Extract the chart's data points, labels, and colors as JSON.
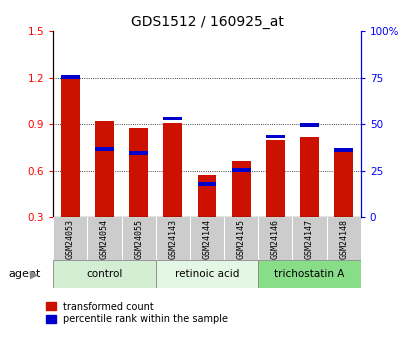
{
  "title": "GDS1512 / 160925_at",
  "samples": [
    "GSM24053",
    "GSM24054",
    "GSM24055",
    "GSM24143",
    "GSM24144",
    "GSM24145",
    "GSM24146",
    "GSM24147",
    "GSM24148"
  ],
  "red_values": [
    1.21,
    0.92,
    0.875,
    0.91,
    0.575,
    0.66,
    0.8,
    0.82,
    0.745
  ],
  "blue_values": [
    1.205,
    0.74,
    0.715,
    0.935,
    0.515,
    0.605,
    0.82,
    0.895,
    0.735
  ],
  "red_color": "#cc1100",
  "blue_color": "#0000cc",
  "bar_bottom": 0.3,
  "ylim_left": [
    0.3,
    1.5
  ],
  "ylim_right": [
    0,
    100
  ],
  "yticks_left": [
    0.3,
    0.6,
    0.9,
    1.2,
    1.5
  ],
  "yticks_right": [
    0,
    25,
    50,
    75,
    100
  ],
  "yticklabels_right": [
    "0",
    "25",
    "50",
    "75",
    "100%"
  ],
  "groups": [
    {
      "label": "control",
      "samples": [
        0,
        1,
        2
      ],
      "color": "#d4eed4"
    },
    {
      "label": "retinoic acid",
      "samples": [
        3,
        4,
        5
      ],
      "color": "#e4f6e4"
    },
    {
      "label": "trichostatin A",
      "samples": [
        6,
        7,
        8
      ],
      "color": "#88dd88"
    }
  ],
  "agent_label": "agent",
  "legend_red": "transformed count",
  "legend_blue": "percentile rank within the sample",
  "bar_width": 0.55,
  "background_color": "#ffffff",
  "plot_bg": "#ffffff",
  "sample_area_color": "#cccccc"
}
